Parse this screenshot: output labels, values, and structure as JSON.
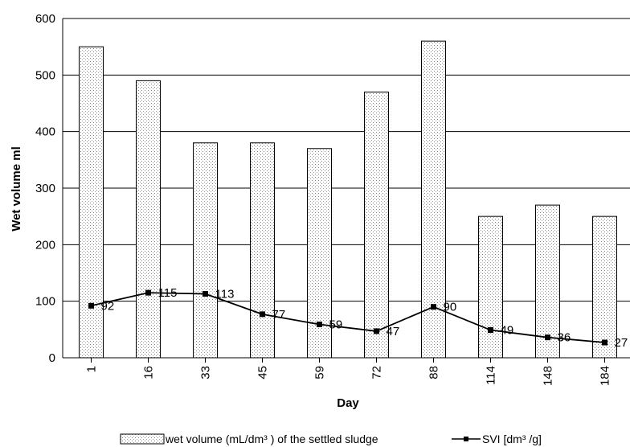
{
  "chart_data": {
    "type": "bar",
    "xlabel": "Day",
    "ylabel": "Wet volume ml",
    "ylim": [
      0,
      600
    ],
    "yticks": [
      0,
      100,
      200,
      300,
      400,
      500,
      600
    ],
    "grid": "horizontal",
    "legend": "bottom",
    "categories": [
      "1",
      "16",
      "33",
      "45",
      "59",
      "72",
      "88",
      "114",
      "148",
      "184"
    ],
    "series": [
      {
        "name": "wet volume (mL/dm³ ) of the settled sludge",
        "kind": "bar",
        "pattern": "dotted",
        "values": [
          550,
          490,
          380,
          380,
          370,
          470,
          560,
          250,
          270,
          250
        ]
      },
      {
        "name": "SVI [dm³ /g]",
        "kind": "line",
        "marker": "square",
        "color": "#000000",
        "values": [
          92,
          115,
          113,
          77,
          59,
          47,
          90,
          49,
          36,
          27
        ]
      }
    ]
  }
}
